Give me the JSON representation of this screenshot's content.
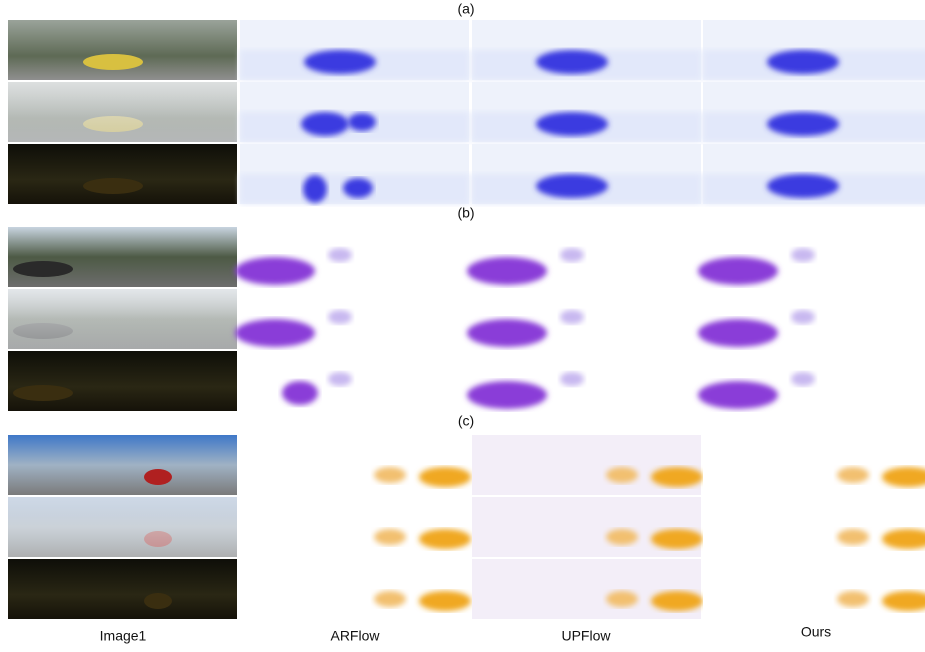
{
  "panels": [
    {
      "label": "(a)"
    },
    {
      "label": "(b)"
    },
    {
      "label": "(c)"
    }
  ],
  "columns": [
    "Image1",
    "ARFlow",
    "UPFlow",
    "Ours"
  ]
}
